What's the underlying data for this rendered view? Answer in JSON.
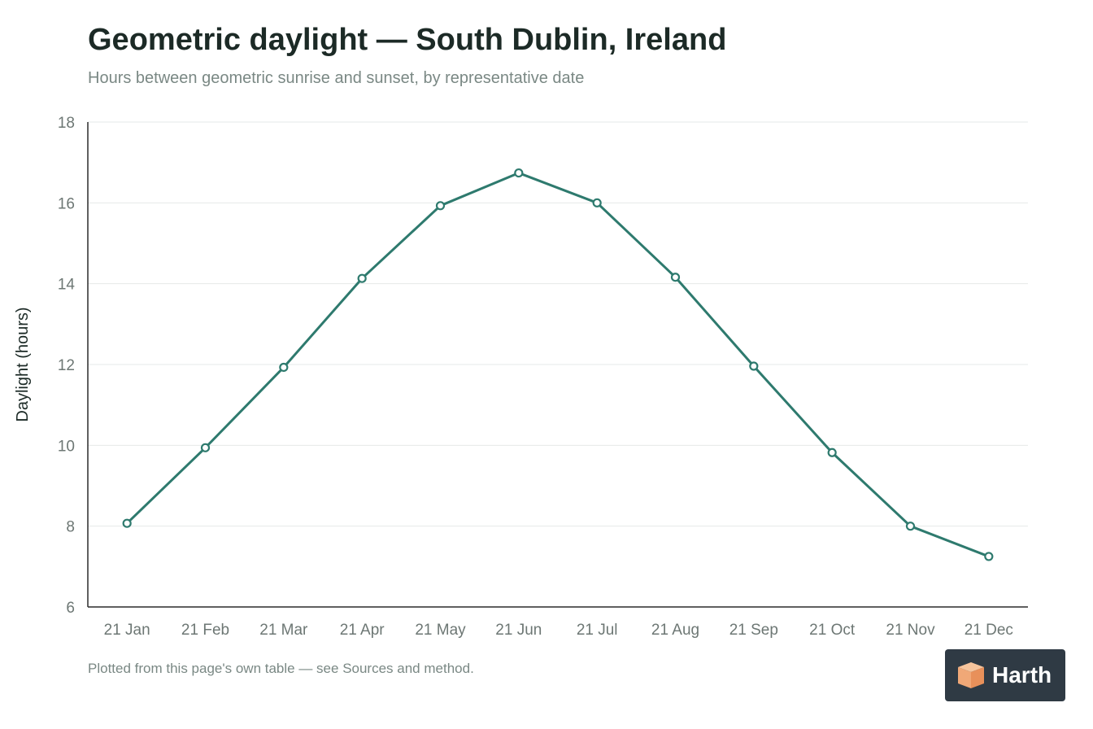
{
  "chart_data": {
    "type": "line",
    "title": "Geometric daylight — South Dublin, Ireland",
    "subtitle": "Hours between geometric sunrise and sunset, by representative date",
    "ylabel": "Daylight (hours)",
    "xlabel": "",
    "categories": [
      "21 Jan",
      "21 Feb",
      "21 Mar",
      "21 Apr",
      "21 May",
      "21 Jun",
      "21 Jul",
      "21 Aug",
      "21 Sep",
      "21 Oct",
      "21 Nov",
      "21 Dec"
    ],
    "values": [
      8.07,
      9.94,
      11.93,
      14.13,
      15.93,
      16.74,
      16.0,
      14.16,
      11.96,
      9.82,
      8.0,
      7.25
    ],
    "ylim": [
      6,
      18
    ],
    "yticks": [
      6,
      8,
      10,
      12,
      14,
      16,
      18
    ],
    "grid": true,
    "line_color": "#2e7a6e"
  },
  "footnote": "Plotted from this page's own table — see Sources and method.",
  "logo": {
    "text": "Harth",
    "icon": "box-icon"
  }
}
